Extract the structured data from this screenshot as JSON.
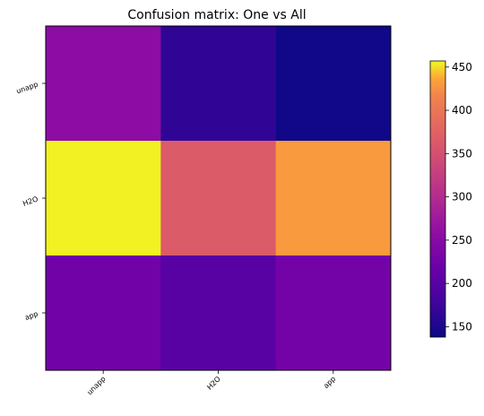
{
  "chart_data": {
    "type": "heatmap",
    "title": "Confusion matrix: One vs All",
    "row_labels": [
      "unapp",
      "H2O",
      "app"
    ],
    "col_labels": [
      "unapp",
      "H2O",
      "app"
    ],
    "values": [
      [
        255,
        165,
        140
      ],
      [
        455,
        365,
        430
      ],
      [
        225,
        200,
        228
      ]
    ],
    "colormap": "plasma",
    "colorbar": {
      "min": 138,
      "max": 457,
      "ticks": [
        150,
        200,
        250,
        300,
        350,
        400,
        450
      ]
    }
  }
}
